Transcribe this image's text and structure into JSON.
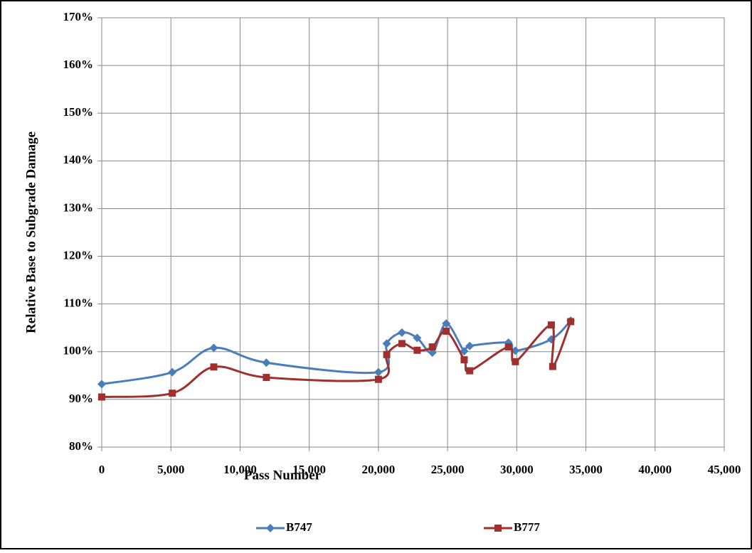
{
  "chart_data": {
    "type": "line",
    "xlabel": "Pass Number",
    "ylabel": "Relative Base to Subgrade Damage",
    "xlim": [
      0,
      45000
    ],
    "ylim": [
      80,
      170
    ],
    "xticks": [
      0,
      {
        "value": 5000,
        "label": "5,000"
      },
      {
        "value": 10000,
        "label": "10,000"
      },
      {
        "value": 15000,
        "label": "15,000"
      },
      {
        "value": 20000,
        "label": "20,000"
      },
      {
        "value": 25000,
        "label": "25,000"
      },
      {
        "value": 30000,
        "label": "30,000"
      },
      {
        "value": 35000,
        "label": "35,000"
      },
      {
        "value": 40000,
        "label": "40,000"
      },
      {
        "value": 45000,
        "label": "45,000"
      }
    ],
    "yticks": [
      {
        "value": 80,
        "label": "80%"
      },
      {
        "value": 90,
        "label": "90%"
      },
      {
        "value": 100,
        "label": "100%"
      },
      {
        "value": 110,
        "label": "110%"
      },
      {
        "value": 120,
        "label": "120%"
      },
      {
        "value": 130,
        "label": "130%"
      },
      {
        "value": 140,
        "label": "140%"
      },
      {
        "value": 150,
        "label": "150%"
      },
      {
        "value": 160,
        "label": "160%"
      },
      {
        "value": 170,
        "label": "170%"
      }
    ],
    "grid": true,
    "legend": "bottom",
    "series": [
      {
        "name": "B747",
        "color": "#4a7ebb",
        "marker": "diamond",
        "x": [
          0,
          5100,
          8100,
          11900,
          20000,
          20600,
          21700,
          22800,
          23900,
          24900,
          26200,
          26600,
          29400,
          29900,
          32500,
          33900
        ],
        "values": [
          93.2,
          95.7,
          100.8,
          97.7,
          95.7,
          101.7,
          104.0,
          102.9,
          99.8,
          105.9,
          100.1,
          101.2,
          101.9,
          100.2,
          102.6,
          106.5
        ]
      },
      {
        "name": "B777",
        "color": "#a0302e",
        "marker": "square",
        "x": [
          0,
          5100,
          8100,
          11900,
          20000,
          20600,
          21700,
          22800,
          23900,
          24900,
          26200,
          26600,
          29400,
          29900,
          32500,
          32600,
          33900
        ],
        "values": [
          90.5,
          91.3,
          96.8,
          94.6,
          94.2,
          99.4,
          101.7,
          100.3,
          101.0,
          104.3,
          98.3,
          96.0,
          101.0,
          97.9,
          105.6,
          96.9,
          106.3
        ]
      }
    ]
  }
}
